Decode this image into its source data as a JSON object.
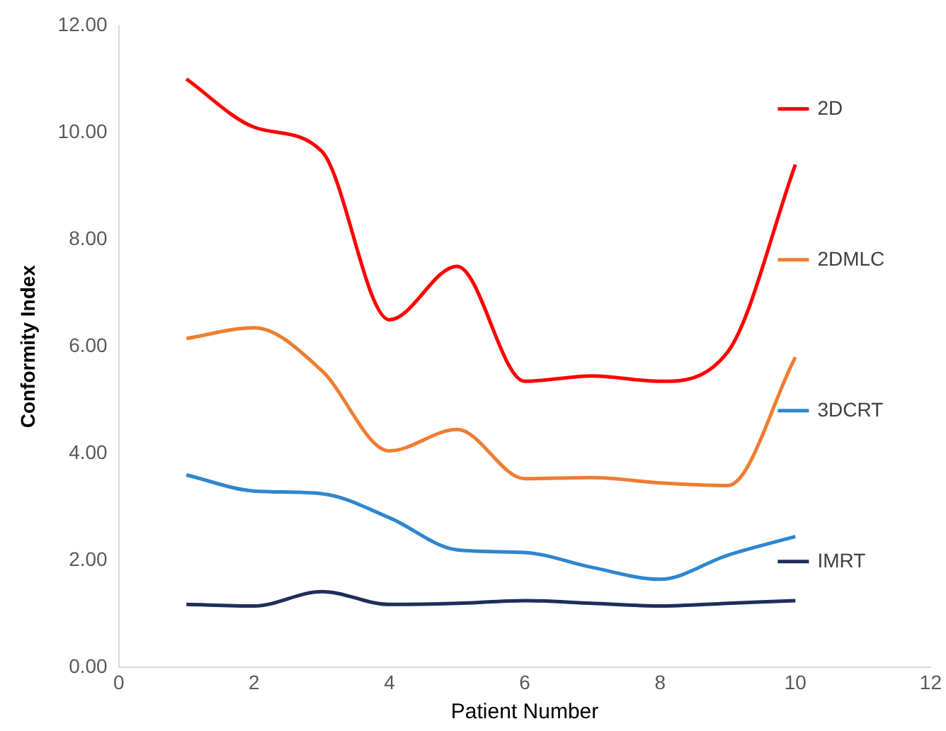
{
  "chart_data": {
    "type": "line",
    "xlabel": "Patient Number",
    "ylabel": "Conformity Index",
    "x": [
      1,
      2,
      3,
      4,
      5,
      6,
      7,
      8,
      9,
      10
    ],
    "series": [
      {
        "name": "2D",
        "color": "#ff0000",
        "values": [
          11.0,
          10.1,
          9.65,
          6.5,
          7.5,
          5.35,
          5.45,
          5.35,
          5.9,
          9.4
        ]
      },
      {
        "name": "2DMLC",
        "color": "#ed7d31",
        "values": [
          6.15,
          6.35,
          5.55,
          4.05,
          4.45,
          3.53,
          3.55,
          3.45,
          3.4,
          5.8
        ]
      },
      {
        "name": "3DCRT",
        "color": "#2e86d0",
        "values": [
          3.6,
          3.3,
          3.25,
          2.8,
          2.2,
          2.15,
          1.87,
          1.65,
          2.1,
          2.45
        ]
      },
      {
        "name": "IMRT",
        "color": "#1f2d5c",
        "values": [
          1.18,
          1.15,
          1.42,
          1.18,
          1.2,
          1.25,
          1.2,
          1.15,
          1.2,
          1.25
        ]
      }
    ],
    "xlim": [
      0,
      12
    ],
    "xticks": [
      0,
      2,
      4,
      6,
      8,
      10,
      12
    ],
    "ylim": [
      0,
      12
    ],
    "yticks": [
      {
        "value": 0,
        "label": "0.00"
      },
      {
        "value": 2,
        "label": "2.00"
      },
      {
        "value": 4,
        "label": "4.00"
      },
      {
        "value": 6,
        "label": "6.00"
      },
      {
        "value": 8,
        "label": "8.00"
      },
      {
        "value": 10,
        "label": "10.00"
      },
      {
        "value": 12,
        "label": "12.00"
      }
    ],
    "grid": false,
    "legend": "right",
    "marker": "none",
    "line_style": "solid"
  }
}
